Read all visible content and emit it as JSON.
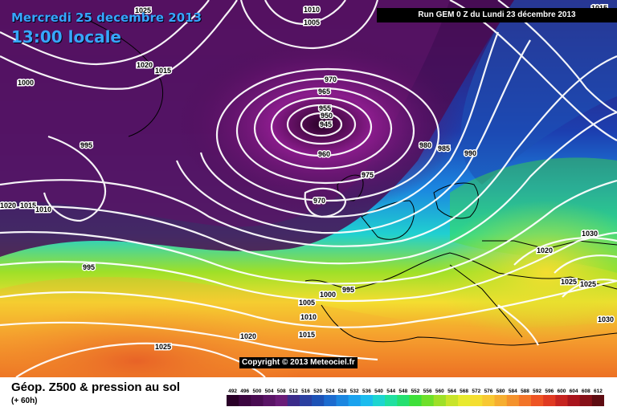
{
  "header": {
    "date": "Mercredi 25 decembre 2013",
    "time": "13:00 locale",
    "run": "Run GEM 0 Z du Lundi 23 décembre 2013"
  },
  "map": {
    "copyright": "Copyright © 2013 Meteociel.fr",
    "pressure_labels": [
      "1025",
      "1010",
      "1005",
      "1020",
      "1015",
      "1000",
      "970",
      "965",
      "955",
      "950",
      "945",
      "960",
      "995",
      "975",
      "980",
      "985",
      "990",
      "970",
      "1020",
      "1015",
      "1010",
      "1030",
      "1020",
      "995",
      "995",
      "1005",
      "1010",
      "1000",
      "1015",
      "1020",
      "1025",
      "1025",
      "1025",
      "1030",
      "1015"
    ]
  },
  "footer": {
    "title": "Géop. Z500 & pression au sol",
    "subtitle": "(+ 60h)"
  },
  "legend": {
    "ticks": [
      "492",
      "496",
      "500",
      "504",
      "508",
      "512",
      "516",
      "520",
      "524",
      "528",
      "532",
      "536",
      "540",
      "544",
      "548",
      "552",
      "556",
      "560",
      "564",
      "568",
      "572",
      "576",
      "580",
      "584",
      "588",
      "592",
      "596",
      "600",
      "604",
      "608",
      "612"
    ],
    "colors": [
      "#2a0028",
      "#3c0640",
      "#4a0c52",
      "#5a1466",
      "#6a1c78",
      "#3b2b8a",
      "#2a3fa0",
      "#1d52b6",
      "#1c6bcf",
      "#1b86e0",
      "#1aa2ee",
      "#1bbcee",
      "#1dd5d0",
      "#20e0a0",
      "#24e070",
      "#3ee03a",
      "#6ee02a",
      "#9ee028",
      "#c8e42a",
      "#e8ea2e",
      "#f4de30",
      "#f8c832",
      "#f6ae30",
      "#f4922c",
      "#f27428",
      "#ee5424",
      "#e03a22",
      "#c62420",
      "#a8141c",
      "#861018",
      "#5e0c12"
    ]
  }
}
